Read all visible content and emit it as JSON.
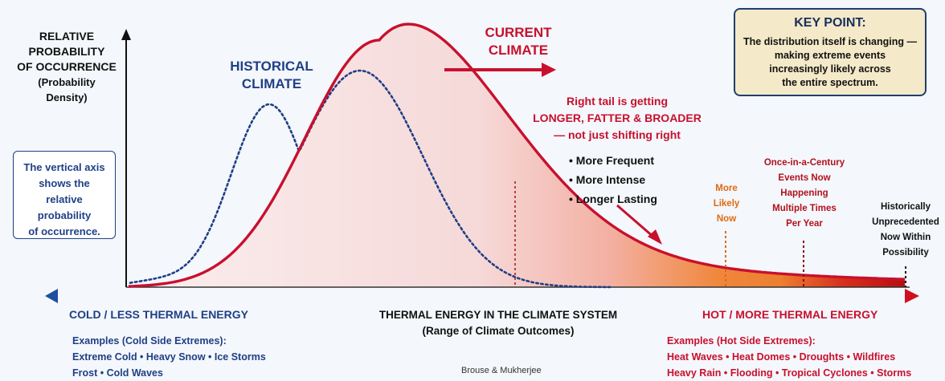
{
  "y_axis": {
    "title_lines": [
      "RELATIVE",
      "PROBABILITY",
      "OF OCCURRENCE"
    ],
    "subtitle_lines": [
      "(Probability",
      "Density)"
    ]
  },
  "left_callout": {
    "lines": [
      "The vertical axis",
      "shows the",
      "relative probability",
      "of occurrence."
    ]
  },
  "key_point": {
    "title": "KEY POINT:",
    "lines": [
      "The distribution itself is changing —",
      "making extreme events",
      "increasingly likely across",
      "the entire spectrum."
    ]
  },
  "historical_label": [
    "HISTORICAL",
    "CLIMATE"
  ],
  "current_label": [
    "CURRENT",
    "CLIMATE"
  ],
  "tail_note": {
    "lines": [
      "Right tail is getting",
      "LONGER, FATTER & BROADER",
      "— not just shifting right"
    ],
    "items": [
      "More Frequent",
      "More Intense",
      "Longer Lasting"
    ]
  },
  "markers": {
    "more_likely": [
      "More",
      "Likely",
      "Now"
    ],
    "century": [
      "Once-in-a-Century",
      "Events Now",
      "Happening",
      "Multiple Times",
      "Per Year"
    ],
    "unprecedented": [
      "Historically",
      "Unprecedented",
      "Now Within",
      "Possibility"
    ]
  },
  "x_axis": {
    "cold_label": "COLD / LESS THERMAL ENERGY",
    "hot_label": "HOT / MORE THERMAL ENERGY",
    "title": "THERMAL ENERGY IN THE CLIMATE SYSTEM",
    "subtitle": "(Range of Climate Outcomes)"
  },
  "cold_examples": {
    "title": "Examples (Cold Side Extremes):",
    "line1": "Extreme Cold • Heavy Snow • Ice Storms",
    "line2": "Frost •  Cold Waves"
  },
  "hot_examples": {
    "title": "Examples (Hot Side Extremes):",
    "line1": "Heat Waves • Heat Domes • Droughts • Wildfires",
    "line2": "Heavy Rain • Flooding • Tropical Cyclones • Storms"
  },
  "credit": "Brouse & Mukherjee",
  "colors": {
    "historical": "#1f3f86",
    "current": "#c8102e",
    "cold": "#1f4fa0",
    "hot": "#d0101e",
    "more_likely": "#e06a10",
    "key_bg": "#f4e9c8"
  }
}
